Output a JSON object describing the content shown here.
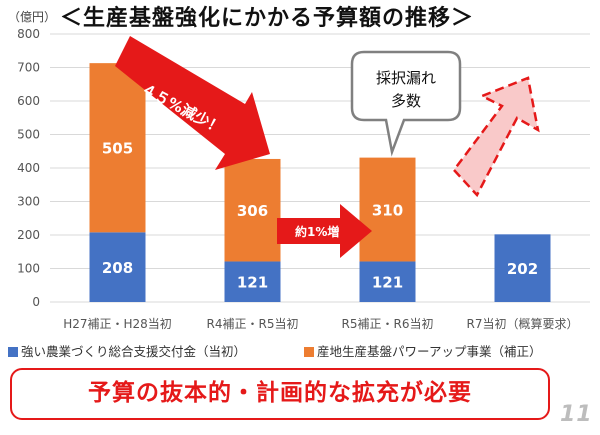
{
  "title": "＜生産基盤強化にかかる予算額の推移＞",
  "unit_label": "（億円）",
  "chart_data": {
    "type": "bar",
    "stacked": true,
    "categories": [
      "H27補正・H28当初",
      "R4補正・R5当初",
      "R5補正・R6当初",
      "R7当初（概算要求）"
    ],
    "series": [
      {
        "name": "強い農業づくり総合支援交付金（当初）",
        "color": "#4472c4",
        "values": [
          208,
          121,
          121,
          202
        ]
      },
      {
        "name": "産地生産基盤パワーアップ事業（補正）",
        "color": "#ed7d31",
        "values": [
          505,
          306,
          310,
          0
        ]
      }
    ],
    "ylim": [
      0,
      800
    ],
    "yticks": [
      0,
      100,
      200,
      300,
      400,
      500,
      600,
      700,
      800
    ],
    "grid": true,
    "legend_position": "bottom"
  },
  "annotations": {
    "decrease_arrow_label": "４５%減少！",
    "increase_arrow_label": "約1%増",
    "callout_text_line1": "採択漏れ",
    "callout_text_line2": "多数"
  },
  "banner_text": "予算の抜本的・計画的な拡充が必要",
  "page_number": "11",
  "colors": {
    "blue": "#4472c4",
    "orange": "#ed7d31",
    "red": "#e51919",
    "grid": "#d9d9d9"
  }
}
